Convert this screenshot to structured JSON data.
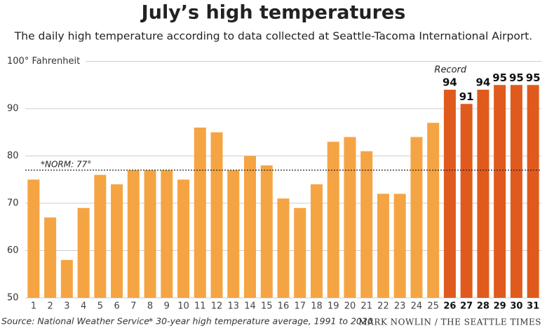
{
  "chart_data": {
    "type": "bar",
    "title": "July’s high temperatures",
    "subtitle": "The daily high temperature according to data collected at Seattle-Tacoma International Airport.",
    "categories": [
      "1",
      "2",
      "3",
      "4",
      "5",
      "6",
      "7",
      "8",
      "9",
      "10",
      "11",
      "12",
      "13",
      "14",
      "15",
      "16",
      "17",
      "18",
      "19",
      "20",
      "21",
      "22",
      "23",
      "24",
      "25",
      "26",
      "27",
      "28",
      "29",
      "30",
      "31"
    ],
    "series": [
      {
        "color": "#f5a443",
        "data_labels": false,
        "values": [
          75,
          67,
          58,
          69,
          76,
          74,
          77,
          77,
          77,
          75,
          86,
          85,
          77,
          80,
          78,
          71,
          69,
          74,
          83,
          84,
          81,
          72,
          72,
          84,
          87,
          null,
          null,
          null,
          null,
          null,
          null
        ]
      },
      {
        "color": "#e05a1e",
        "data_labels": true,
        "values": [
          null,
          null,
          null,
          null,
          null,
          null,
          null,
          null,
          null,
          null,
          null,
          null,
          null,
          null,
          null,
          null,
          null,
          null,
          null,
          null,
          null,
          null,
          null,
          null,
          null,
          94,
          91,
          94,
          95,
          95,
          95
        ]
      }
    ],
    "ylim": [
      50,
      100
    ],
    "yticks": [
      50,
      60,
      70,
      80,
      90,
      {
        "value": 100,
        "label": "100° Fahrenheit"
      }
    ],
    "grid": true,
    "norm": {
      "value": 77,
      "label": "*NORM: 77°"
    },
    "record_label": "Record",
    "source": "Source: National Weather Service",
    "footnote": "* 30-year high temperature average, 1991 to 2020",
    "credit": "MARK NOWLIN / THE SEATTLE TIMES"
  }
}
